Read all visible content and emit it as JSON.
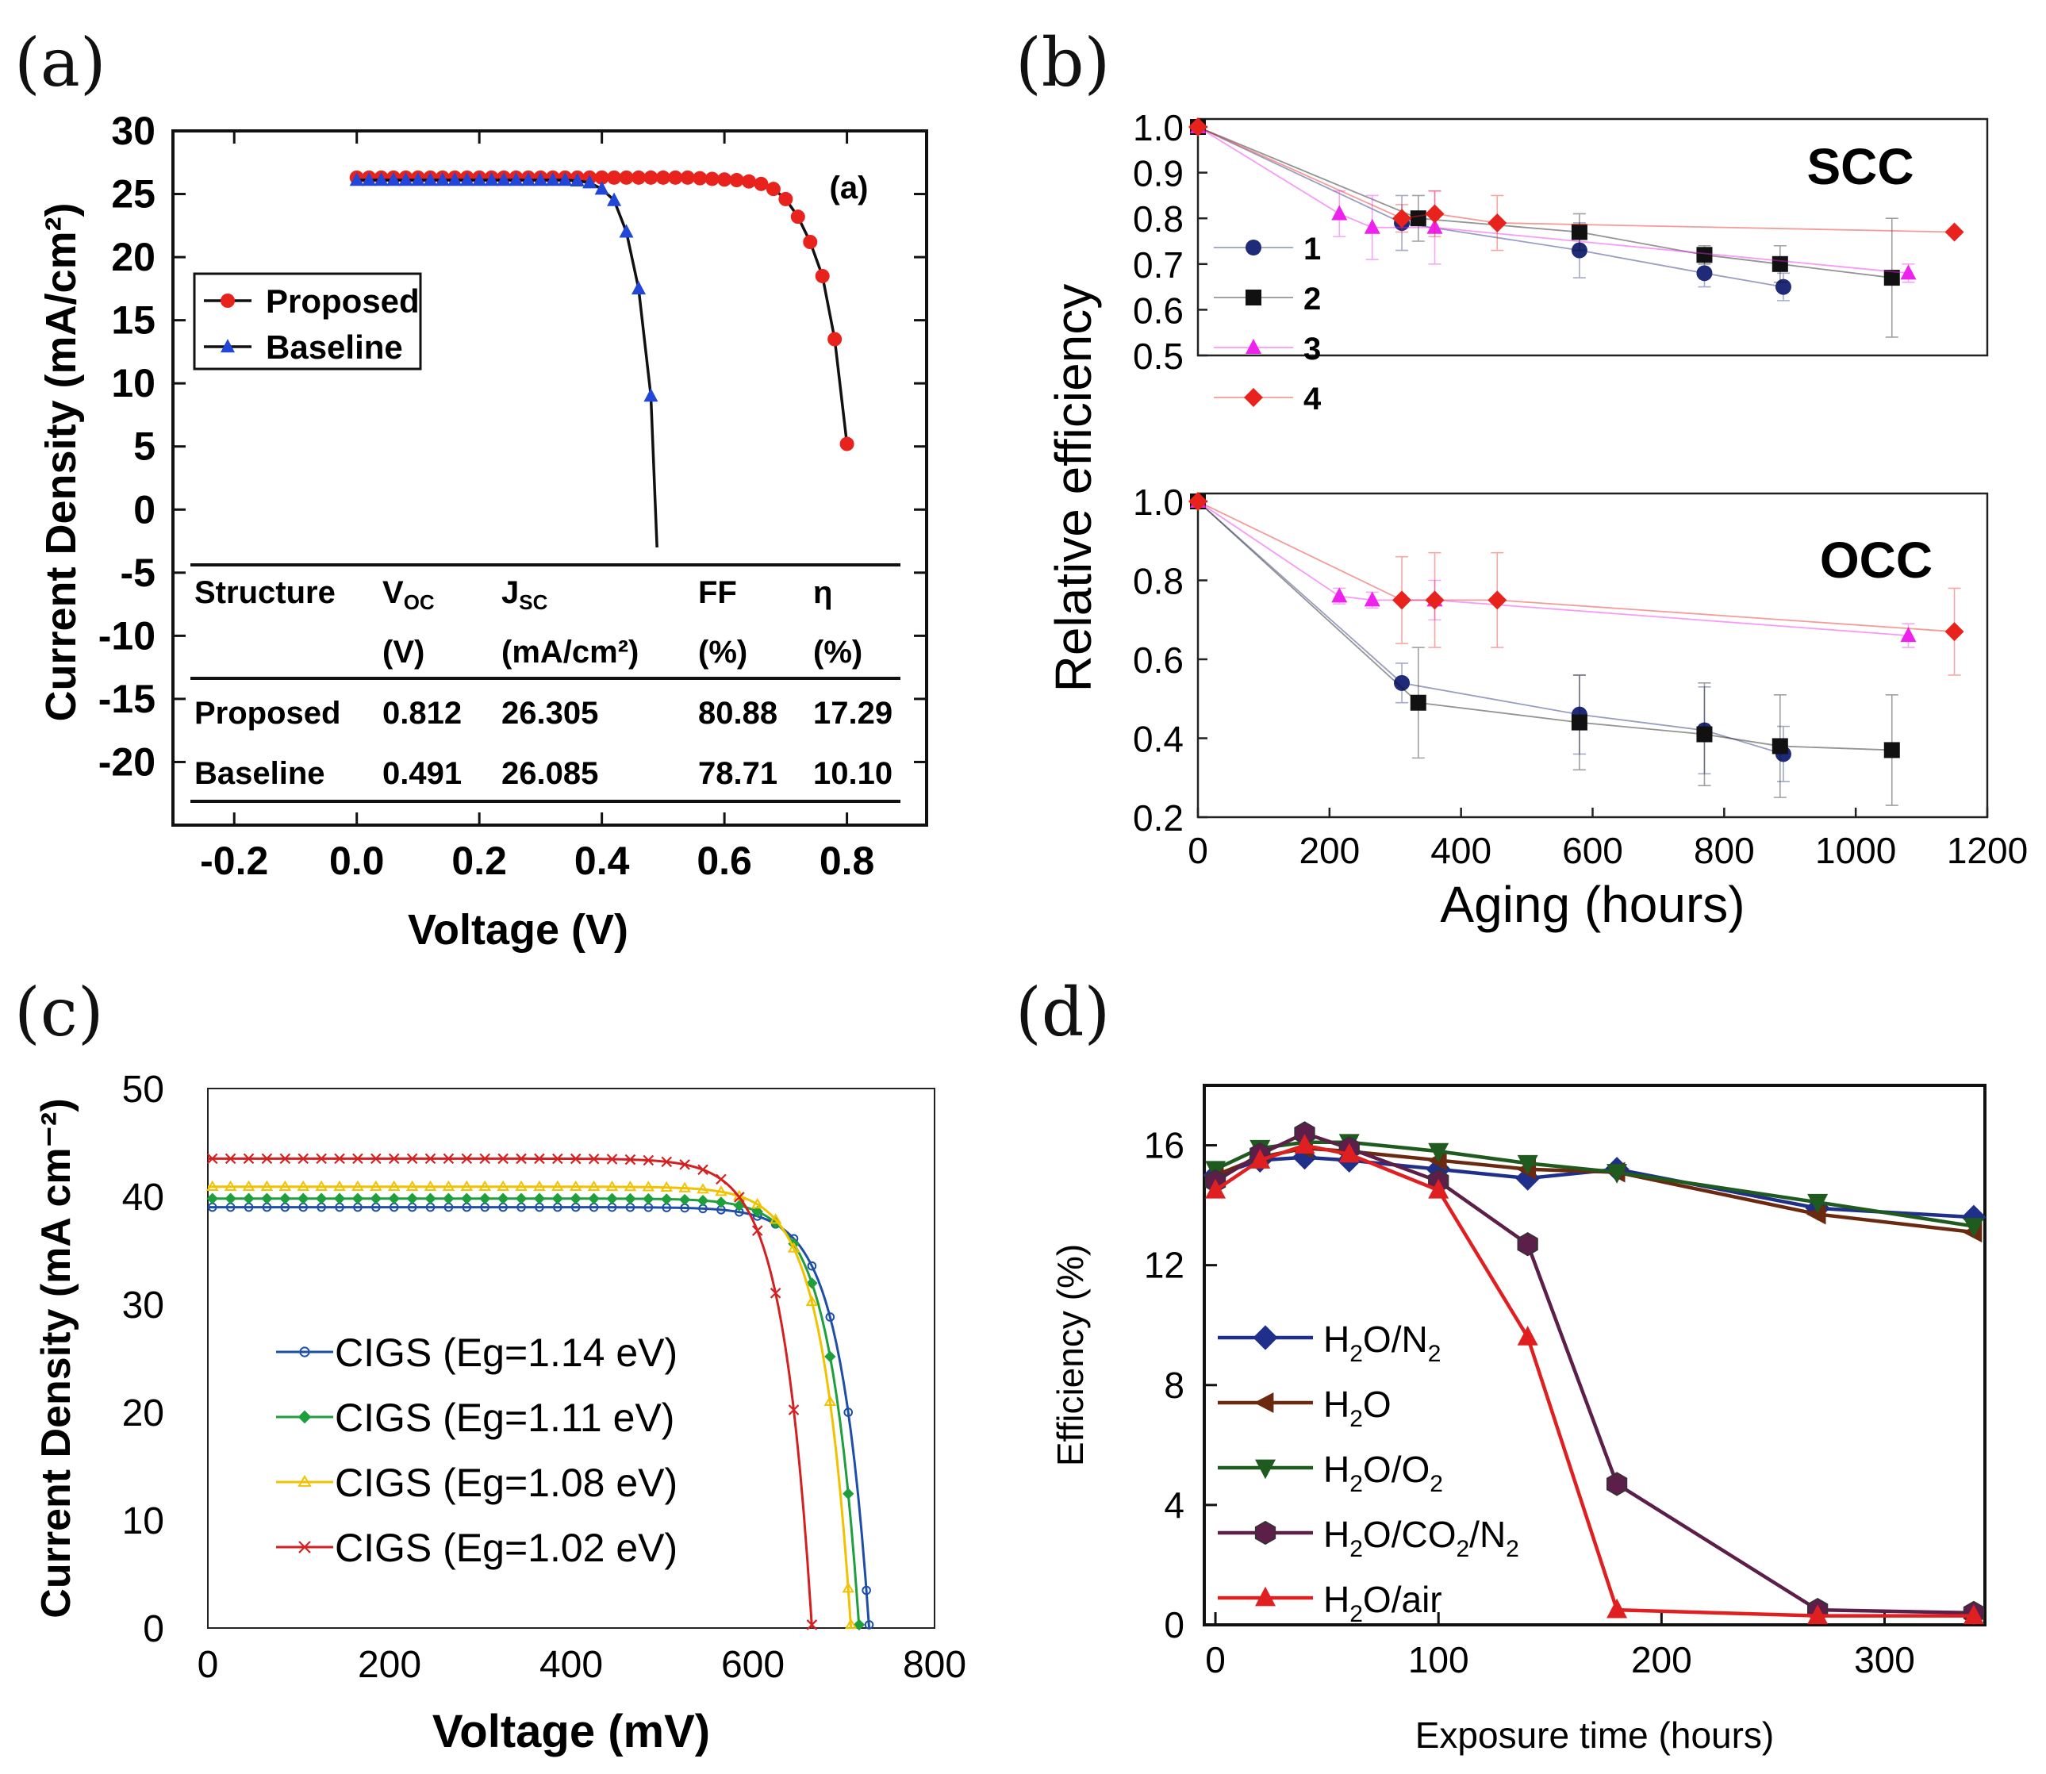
{
  "panels": {
    "a": {
      "label": "(a)"
    },
    "b": {
      "label": "(b)"
    },
    "c": {
      "label": "(c)"
    },
    "d": {
      "label": "(d)"
    }
  },
  "chart_data": [
    {
      "id": "a",
      "type": "line",
      "inner_label": "(a)",
      "xlabel": "Voltage (V)",
      "ylabel": "Current Density (mA/cm²)",
      "xlim": [
        -0.3,
        0.93
      ],
      "ylim": [
        -25,
        30
      ],
      "xticks": [
        -0.2,
        0.0,
        0.2,
        0.4,
        0.6,
        0.8
      ],
      "xtick_labels": [
        "-0.2",
        "0.0",
        "0.2",
        "0.4",
        "0.6",
        "0.8"
      ],
      "yticks": [
        30,
        25,
        20,
        15,
        10,
        5,
        0,
        -5,
        -10,
        -15,
        -20
      ],
      "ytick_labels": [
        "30",
        "25",
        "20",
        "15",
        "10",
        "5",
        "0",
        "-5",
        "-10",
        "-15",
        "-20"
      ],
      "series": [
        {
          "name": "Proposed",
          "color": "#e8221d",
          "marker": "circle",
          "x": [
            0.0,
            0.02,
            0.04,
            0.06,
            0.08,
            0.1,
            0.12,
            0.14,
            0.16,
            0.18,
            0.2,
            0.22,
            0.24,
            0.26,
            0.28,
            0.3,
            0.32,
            0.34,
            0.36,
            0.38,
            0.4,
            0.42,
            0.44,
            0.46,
            0.48,
            0.5,
            0.52,
            0.54,
            0.56,
            0.58,
            0.6,
            0.62,
            0.64,
            0.66,
            0.68,
            0.7,
            0.72,
            0.74,
            0.76,
            0.78,
            0.8
          ],
          "y": [
            26.3,
            26.3,
            26.3,
            26.3,
            26.3,
            26.3,
            26.3,
            26.3,
            26.3,
            26.3,
            26.3,
            26.3,
            26.3,
            26.3,
            26.3,
            26.3,
            26.3,
            26.3,
            26.3,
            26.3,
            26.3,
            26.3,
            26.3,
            26.3,
            26.3,
            26.3,
            26.3,
            26.3,
            26.25,
            26.2,
            26.15,
            26.1,
            26.0,
            25.8,
            25.4,
            24.6,
            23.2,
            21.2,
            18.5,
            13.5,
            5.2
          ]
        },
        {
          "name": "Baseline",
          "color": "#2146d8",
          "marker": "triangle",
          "x": [
            0.0,
            0.02,
            0.04,
            0.06,
            0.08,
            0.1,
            0.12,
            0.14,
            0.16,
            0.18,
            0.2,
            0.22,
            0.24,
            0.26,
            0.28,
            0.3,
            0.32,
            0.34,
            0.36,
            0.38,
            0.4,
            0.42,
            0.44,
            0.46,
            0.48
          ],
          "y": [
            26.1,
            26.1,
            26.1,
            26.1,
            26.1,
            26.1,
            26.1,
            26.1,
            26.1,
            26.1,
            26.1,
            26.1,
            26.1,
            26.1,
            26.1,
            26.1,
            26.1,
            26.1,
            26.05,
            25.9,
            25.4,
            24.5,
            22.0,
            17.5,
            9.0
          ],
          "curve_end": [
            0.49,
            -3.0
          ]
        }
      ],
      "table": {
        "headers": [
          "Structure",
          "V",
          "J",
          "FF",
          "η"
        ],
        "header_subscripts": [
          "",
          "OC",
          "SC",
          "",
          ""
        ],
        "units": [
          "",
          "(V)",
          "(mA/cm²)",
          "(%)",
          "(%)"
        ],
        "rows": [
          [
            "Proposed",
            "0.812",
            "26.305",
            "80.88",
            "17.29"
          ],
          [
            "Baseline",
            "0.491",
            "26.085",
            "78.71",
            "10.10"
          ]
        ]
      }
    },
    {
      "id": "b",
      "type": "line",
      "xlabel": "Aging (hours)",
      "ylabel": "Relative efficiency",
      "xlim": [
        0,
        1200
      ],
      "xticks": [
        0,
        200,
        400,
        600,
        800,
        1000,
        1200
      ],
      "xtick_labels": [
        "0",
        "200",
        "400",
        "600",
        "800",
        "1000",
        "1200"
      ],
      "legend": [
        "1",
        "2",
        "3",
        "4"
      ],
      "subplots": [
        {
          "title": "SCC",
          "ylim": [
            0.5,
            1.0
          ],
          "yticks": [
            0.5,
            0.6,
            0.7,
            0.8,
            0.9,
            1.0
          ],
          "ytick_labels": [
            "0.5",
            "0.6",
            "0.7",
            "0.8",
            "0.9",
            "1.0"
          ],
          "series": [
            {
              "name": "1",
              "color": "#1f2a78",
              "marker": "circle",
              "x": [
                0,
                310,
                580,
                770,
                890
              ],
              "y": [
                1.0,
                0.79,
                0.73,
                0.68,
                0.65
              ],
              "err": [
                0,
                0.06,
                0.06,
                0.03,
                0.03
              ]
            },
            {
              "name": "2",
              "color": "#111111",
              "marker": "square",
              "x": [
                0,
                335,
                580,
                770,
                885,
                1055
              ],
              "y": [
                1.0,
                0.8,
                0.77,
                0.72,
                0.7,
                0.67
              ],
              "err": [
                0,
                0.05,
                0.04,
                0.02,
                0.04,
                0.13
              ]
            },
            {
              "name": "3",
              "color": "#ee22ee",
              "marker": "triangle",
              "x": [
                0,
                215,
                265,
                360,
                1080
              ],
              "y": [
                1.0,
                0.81,
                0.78,
                0.78,
                0.68
              ],
              "err": [
                0,
                0.05,
                0.07,
                0.08,
                0.02
              ]
            },
            {
              "name": "4",
              "color": "#e8221d",
              "marker": "diamond",
              "x": [
                0,
                310,
                360,
                455,
                1150
              ],
              "y": [
                1.0,
                0.8,
                0.81,
                0.79,
                0.77
              ],
              "err": [
                0,
                0.03,
                0.05,
                0.06,
                0.0
              ]
            }
          ]
        },
        {
          "title": "OCC",
          "ylim": [
            0.2,
            1.0
          ],
          "yticks": [
            0.2,
            0.4,
            0.6,
            0.8,
            1.0
          ],
          "ytick_labels": [
            "0.2",
            "0.4",
            "0.6",
            "0.8",
            "1.0"
          ],
          "series": [
            {
              "name": "1",
              "color": "#1f2a78",
              "marker": "circle",
              "x": [
                0,
                310,
                580,
                770,
                890
              ],
              "y": [
                1.0,
                0.54,
                0.46,
                0.42,
                0.36
              ],
              "err": [
                0,
                0.05,
                0.1,
                0.11,
                0.07
              ]
            },
            {
              "name": "2",
              "color": "#111111",
              "marker": "square",
              "x": [
                0,
                335,
                580,
                770,
                885,
                1055
              ],
              "y": [
                1.0,
                0.49,
                0.44,
                0.41,
                0.38,
                0.37
              ],
              "err": [
                0,
                0.14,
                0.12,
                0.13,
                0.13,
                0.14
              ]
            },
            {
              "name": "3",
              "color": "#ee22ee",
              "marker": "triangle",
              "x": [
                0,
                215,
                265,
                360,
                1080
              ],
              "y": [
                1.0,
                0.76,
                0.75,
                0.75,
                0.66
              ],
              "err": [
                0,
                0.02,
                0.02,
                0.05,
                0.03
              ]
            },
            {
              "name": "4",
              "color": "#e8221d",
              "marker": "diamond",
              "x": [
                0,
                310,
                360,
                455,
                1150
              ],
              "y": [
                1.0,
                0.75,
                0.75,
                0.75,
                0.67
              ],
              "err": [
                0,
                0.11,
                0.12,
                0.12,
                0.11
              ]
            }
          ]
        }
      ]
    },
    {
      "id": "c",
      "type": "line",
      "xlabel": "Voltage (mV)",
      "ylabel": "Current Density (mA cm⁻²)",
      "xlim": [
        0,
        800
      ],
      "ylim": [
        0,
        50
      ],
      "xticks": [
        0,
        200,
        400,
        600,
        800
      ],
      "xtick_labels": [
        "0",
        "200",
        "400",
        "600",
        "800"
      ],
      "yticks": [
        0,
        10,
        20,
        30,
        40,
        50
      ],
      "ytick_labels": [
        "0",
        "10",
        "20",
        "30",
        "40",
        "50"
      ],
      "series": [
        {
          "name": "CIGS (Eg=1.14 eV)",
          "color": "#1f4ea8",
          "marker": "circle-open",
          "jsc": 39.0,
          "voc": 728
        },
        {
          "name": "CIGS (Eg=1.11 eV)",
          "color": "#1f9e3c",
          "marker": "diamond",
          "jsc": 39.8,
          "voc": 717
        },
        {
          "name": "CIGS (Eg=1.08 eV)",
          "color": "#f2c100",
          "marker": "triangle-open",
          "jsc": 40.9,
          "voc": 708
        },
        {
          "name": "CIGS (Eg=1.02 eV)",
          "color": "#d42020",
          "marker": "x",
          "jsc": 43.5,
          "voc": 665
        }
      ]
    },
    {
      "id": "d",
      "type": "line",
      "xlabel": "Exposure time (hours)",
      "ylabel": "Efficiency (%)",
      "xlim": [
        -5,
        345
      ],
      "ylim": [
        0,
        18
      ],
      "xticks": [
        0,
        100,
        200,
        300
      ],
      "xtick_labels": [
        "0",
        "100",
        "200",
        "300"
      ],
      "yticks": [
        0,
        4,
        8,
        12,
        16
      ],
      "ytick_labels": [
        "0",
        "4",
        "8",
        "12",
        "16"
      ],
      "series": [
        {
          "name": "H₂O/N₂",
          "color": "#1f2f8a",
          "marker": "diamond",
          "x": [
            0,
            20,
            40,
            60,
            100,
            140,
            180,
            270,
            340
          ],
          "y": [
            15.0,
            15.5,
            15.6,
            15.5,
            15.2,
            14.9,
            15.2,
            13.9,
            13.6
          ]
        },
        {
          "name": "H₂O",
          "color": "#6b2a10",
          "marker": "triangle-left",
          "x": [
            0,
            20,
            40,
            60,
            100,
            140,
            180,
            270,
            340
          ],
          "y": [
            15.0,
            15.6,
            15.9,
            15.8,
            15.5,
            15.2,
            15.1,
            13.7,
            13.1
          ]
        },
        {
          "name": "H₂O/O₂",
          "color": "#1f5a1f",
          "marker": "triangle-down",
          "x": [
            0,
            20,
            40,
            60,
            100,
            140,
            180,
            270,
            340
          ],
          "y": [
            15.2,
            15.9,
            16.1,
            16.1,
            15.8,
            15.4,
            15.1,
            14.1,
            13.3
          ]
        },
        {
          "name": "H₂O/CO₂/N₂",
          "color": "#5b1f4a",
          "marker": "hexagon",
          "x": [
            0,
            20,
            40,
            60,
            100,
            140,
            180,
            270,
            340
          ],
          "y": [
            14.8,
            15.7,
            16.4,
            15.9,
            14.8,
            12.7,
            4.7,
            0.5,
            0.4
          ]
        },
        {
          "name": "H₂O/air",
          "color": "#e02020",
          "marker": "triangle",
          "x": [
            0,
            20,
            40,
            60,
            100,
            140,
            180,
            270,
            340
          ],
          "y": [
            14.5,
            15.5,
            16.0,
            15.7,
            14.5,
            9.6,
            0.5,
            0.3,
            0.3
          ]
        }
      ],
      "legend_labels": [
        {
          "main": "H",
          "sub1": "2",
          "rest": "O/N",
          "sub2": "2"
        },
        {
          "main": "H",
          "sub1": "2",
          "rest": "O",
          "sub2": ""
        },
        {
          "main": "H",
          "sub1": "2",
          "rest": "O/O",
          "sub2": "2"
        },
        {
          "main": "H",
          "sub1": "2",
          "rest": "O/CO",
          "sub2": "2",
          "tail": "/N",
          "sub3": "2"
        },
        {
          "main": "H",
          "sub1": "2",
          "rest": "O/air",
          "sub2": ""
        }
      ]
    }
  ]
}
